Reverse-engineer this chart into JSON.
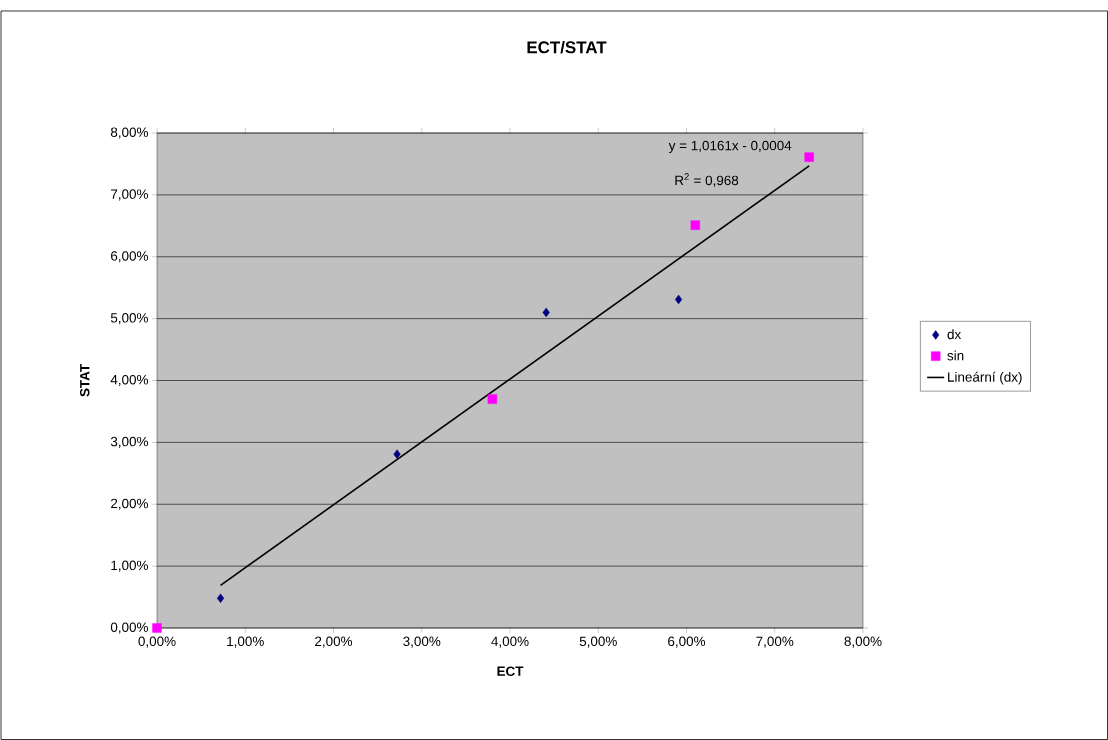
{
  "chart_data": {
    "type": "scatter",
    "title": "ECT/STAT",
    "xlabel": "ECT",
    "ylabel": "STAT",
    "series": [
      {
        "name": "dx",
        "color": "#000080",
        "marker": "diamond",
        "x": [
          0.72,
          2.72,
          4.41,
          5.91
        ],
        "values": [
          0.48,
          2.81,
          5.1,
          5.31
        ]
      },
      {
        "name": "sin",
        "color": "#ff00ff",
        "marker": "square",
        "x": [
          0,
          3.8,
          6.1,
          7.39
        ],
        "values": [
          0,
          3.7,
          6.51,
          7.61
        ]
      },
      {
        "name": "Lineární (dx)",
        "type": "line",
        "color": "#000000",
        "marker": "none",
        "x": [
          0.72,
          7.39
        ],
        "values": [
          0.69,
          7.47
        ]
      }
    ],
    "xlim": [
      0,
      8
    ],
    "ylim": [
      0,
      8
    ],
    "xticks": [
      {
        "value": 0,
        "label": "0,00%"
      },
      {
        "value": 1,
        "label": "1,00%"
      },
      {
        "value": 2,
        "label": "2,00%"
      },
      {
        "value": 3,
        "label": "3,00%"
      },
      {
        "value": 4,
        "label": "4,00%"
      },
      {
        "value": 5,
        "label": "5,00%"
      },
      {
        "value": 6,
        "label": "6,00%"
      },
      {
        "value": 7,
        "label": "7,00%"
      },
      {
        "value": 8,
        "label": "8,00%"
      }
    ],
    "yticks": [
      {
        "value": 0,
        "label": "0,00%"
      },
      {
        "value": 1,
        "label": "1,00%"
      },
      {
        "value": 2,
        "label": "2,00%"
      },
      {
        "value": 3,
        "label": "3,00%"
      },
      {
        "value": 4,
        "label": "4,00%"
      },
      {
        "value": 5,
        "label": "5,00%"
      },
      {
        "value": 6,
        "label": "6,00%"
      },
      {
        "value": 7,
        "label": "7,00%"
      },
      {
        "value": 8,
        "label": "8,00%"
      }
    ],
    "grid": "y",
    "legend": "right",
    "annotations": [
      "y = 1,0161x - 0,0004",
      "R$^{2}$ = 0,968"
    ]
  }
}
